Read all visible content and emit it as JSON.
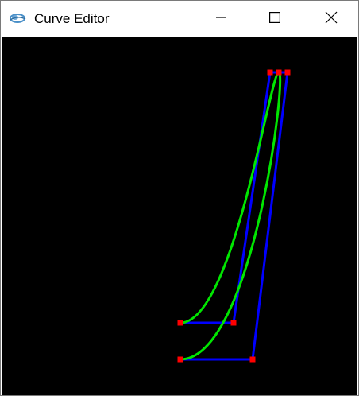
{
  "window": {
    "title": "Curve Editor",
    "icons": {
      "app": "app-logo-icon",
      "minimize": "minimize-icon",
      "maximize": "maximize-icon",
      "close": "close-icon"
    }
  },
  "canvas": {
    "background": "#000000",
    "colors": {
      "control_polygon": "#0000ff",
      "curve": "#00e600",
      "control_point": "#ff0000"
    },
    "curves": [
      {
        "id": "curve-1",
        "control_points": [
          [
            225,
            359
          ],
          [
            292,
            359
          ],
          [
            338,
            44
          ],
          [
            349,
            44
          ]
        ]
      },
      {
        "id": "curve-2",
        "control_points": [
          [
            225,
            405
          ],
          [
            316,
            405
          ],
          [
            360,
            44
          ],
          [
            349,
            44
          ]
        ]
      }
    ]
  }
}
